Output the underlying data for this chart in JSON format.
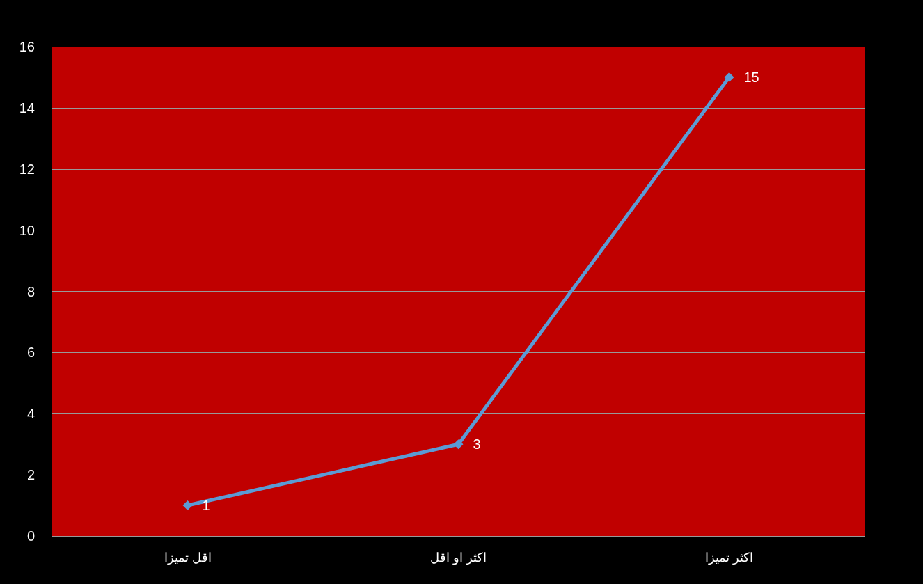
{
  "chart_data": {
    "type": "line",
    "categories": [
      "اقل تميزا",
      "اكثر او اقل",
      "اكثر تميزا"
    ],
    "series": [
      {
        "color": "#5b9bd5",
        "values": [
          1,
          3,
          15
        ]
      }
    ],
    "ylim": [
      0,
      16
    ],
    "yticks": [
      0,
      2,
      4,
      6,
      8,
      10,
      12,
      14,
      16
    ],
    "grid": "y",
    "marker": "diamond",
    "line_style": "solid",
    "data_labels": true
  }
}
